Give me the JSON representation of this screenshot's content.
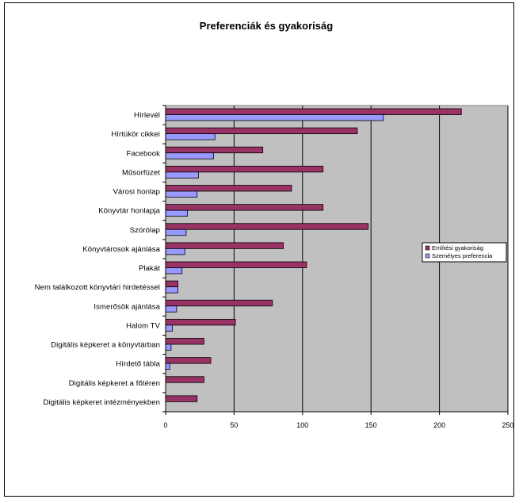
{
  "chart_data": {
    "type": "bar",
    "orientation": "horizontal",
    "title": "Preferenciák és gyakoriság",
    "xlabel": "",
    "ylabel": "",
    "xlim": [
      0,
      250
    ],
    "x_ticks": [
      0,
      50,
      100,
      150,
      200,
      250
    ],
    "grid": true,
    "legend_position": "right",
    "plot_background": "#c0c0c0",
    "categories": [
      "Hírlevél",
      "Hírtükör cikkei",
      "Facebook",
      "Műsorfüzet",
      "Városi honlap",
      "Könyvtár honlapja",
      "Szórólap",
      "Könyvtárosok ajánlása",
      "Plakát",
      "Nem találkozott könyvtári hirdetéssel",
      "Ismerősök ajánlása",
      "Halom TV",
      "Digitális képkeret a könyvtárban",
      "Hírdető tábla",
      "Digitális képkeret a főtéren",
      "Digitális képkeret intézményekben"
    ],
    "series": [
      {
        "name": "Említési gyakoriság",
        "color": "#993366",
        "values": [
          216,
          140,
          71,
          115,
          92,
          115,
          148,
          86,
          103,
          9,
          78,
          51,
          28,
          33,
          28,
          23
        ]
      },
      {
        "name": "Személyes preferencia",
        "color": "#9999ff",
        "values": [
          159,
          36,
          35,
          24,
          23,
          16,
          15,
          14,
          12,
          9,
          8,
          5,
          4,
          3,
          0,
          0
        ]
      }
    ]
  }
}
